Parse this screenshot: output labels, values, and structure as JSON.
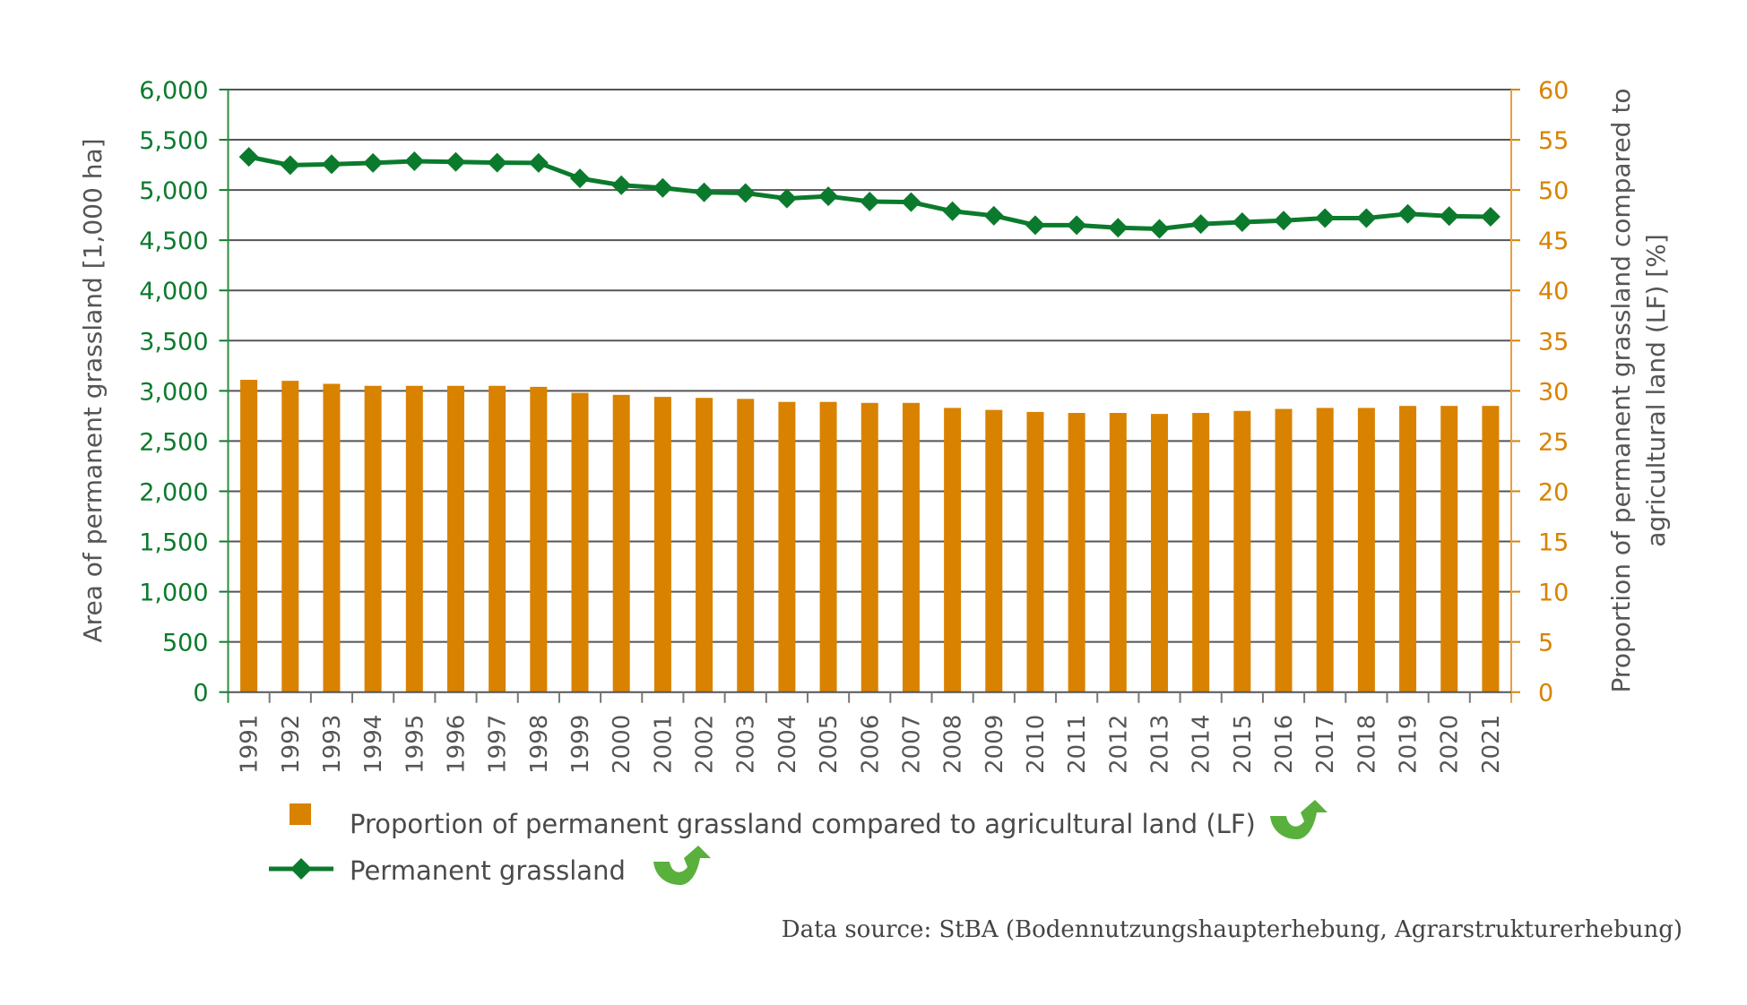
{
  "chart_data": {
    "type": "bar+line",
    "title": "",
    "categories": [
      "1991",
      "1992",
      "1993",
      "1994",
      "1995",
      "1996",
      "1997",
      "1998",
      "1999",
      "2000",
      "2001",
      "2002",
      "2003",
      "2004",
      "2005",
      "2006",
      "2007",
      "2008",
      "2009",
      "2010",
      "2011",
      "2012",
      "2013",
      "2014",
      "2015",
      "2016",
      "2017",
      "2018",
      "2019",
      "2020",
      "2021"
    ],
    "series": [
      {
        "name": "Proportion of permanent grassland compared to agricultural land (LF)",
        "type": "bar",
        "axis": "right",
        "color": "#d98200",
        "values": [
          31.1,
          31.0,
          30.7,
          30.5,
          30.5,
          30.5,
          30.5,
          30.4,
          29.8,
          29.6,
          29.4,
          29.3,
          29.2,
          28.9,
          28.9,
          28.8,
          28.8,
          28.3,
          28.1,
          27.9,
          27.8,
          27.8,
          27.7,
          27.8,
          28.0,
          28.2,
          28.3,
          28.3,
          28.5,
          28.5,
          28.5
        ]
      },
      {
        "name": "Permanent grassland",
        "type": "line",
        "marker": "diamond",
        "axis": "left",
        "color": "#0b7a2c",
        "values": [
          5330,
          5247,
          5256,
          5270,
          5286,
          5280,
          5272,
          5270,
          5116,
          5048,
          5021,
          4976,
          4970,
          4915,
          4937,
          4885,
          4879,
          4789,
          4744,
          4650,
          4650,
          4624,
          4613,
          4661,
          4680,
          4696,
          4720,
          4720,
          4762,
          4740,
          4733
        ]
      }
    ],
    "ylabel": "Area of permanent grassland [1,000 ha]",
    "ylim": [
      0,
      6000
    ],
    "yticks": [
      "0",
      "500",
      "1,000",
      "1,500",
      "2,000",
      "2,500",
      "3,000",
      "3,500",
      "4,000",
      "4,500",
      "5,000",
      "5,500",
      "6,000"
    ],
    "y2label_lines": [
      "Proportion of permanent grassland compared to",
      "agricultural land (LF) [%]"
    ],
    "y2lim": [
      0,
      60
    ],
    "y2ticks": [
      "0",
      "5",
      "10",
      "15",
      "20",
      "25",
      "30",
      "35",
      "40",
      "45",
      "50",
      "55",
      "60"
    ],
    "xlabel": "",
    "grid": true,
    "legend_position": "bottom-left",
    "legend": [
      {
        "label": "Proportion of permanent grassland compared to agricultural land (LF)",
        "marker": "square",
        "trend_icon": "upward-curved-arrow-icon"
      },
      {
        "label": "Permanent grassland",
        "marker": "line-diamond",
        "trend_icon": "upward-curved-arrow-icon"
      }
    ],
    "source": "Data source: StBA (Bodennutzungshaupterhebung, Agrarstrukturerhebung)"
  },
  "colors": {
    "left_axis": "#0b7a2c",
    "right_axis": "#d98200",
    "bar": "#d98200",
    "line": "#0b7a2c",
    "trend_arrow": "#5ab03c",
    "grid": "#555555"
  }
}
